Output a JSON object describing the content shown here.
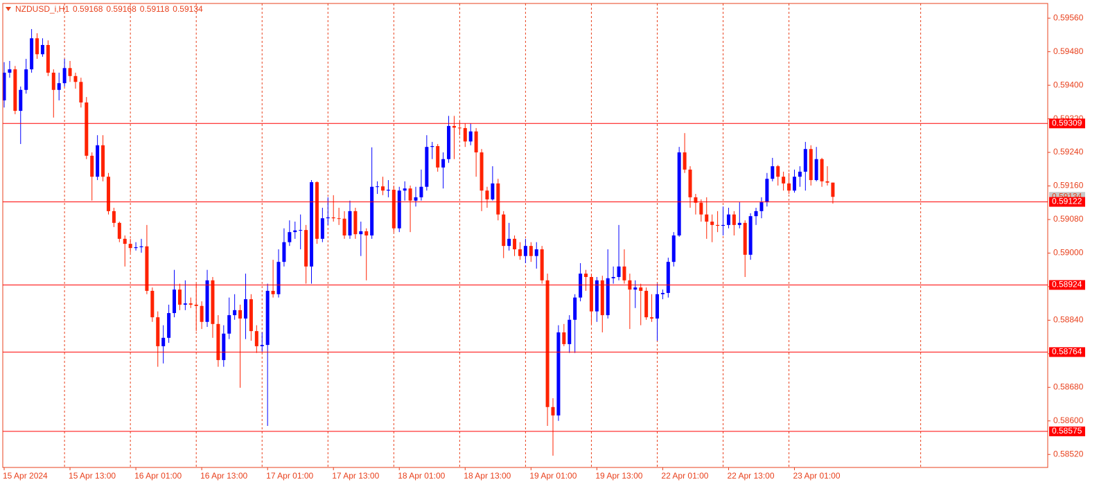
{
  "chart_data": {
    "type": "candlestick",
    "title": "NZDUSD_i,H1",
    "categories": [
      "15 Apr 2024",
      null,
      null,
      null,
      null,
      null,
      null,
      null,
      null,
      null,
      null,
      null,
      "15 Apr 13:00",
      null,
      null,
      null,
      null,
      null,
      null,
      null,
      null,
      null,
      null,
      null,
      "16 Apr 01:00",
      null,
      null,
      null,
      null,
      null,
      null,
      null,
      null,
      null,
      null,
      null,
      "16 Apr 13:00",
      null,
      null,
      null,
      null,
      null,
      null,
      null,
      null,
      null,
      null,
      null,
      "17 Apr 01:00",
      null,
      null,
      null,
      null,
      null,
      null,
      null,
      null,
      null,
      null,
      null,
      "17 Apr 13:00",
      null,
      null,
      null,
      null,
      null,
      null,
      null,
      null,
      null,
      null,
      null,
      "18 Apr 01:00",
      null,
      null,
      null,
      null,
      null,
      null,
      null,
      null,
      null,
      null,
      null,
      "18 Apr 13:00",
      null,
      null,
      null,
      null,
      null,
      null,
      null,
      null,
      null,
      null,
      null,
      "19 Apr 01:00",
      null,
      null,
      null,
      null,
      null,
      null,
      null,
      null,
      null,
      null,
      null,
      "19 Apr 13:00",
      null,
      null,
      null,
      null,
      null,
      null,
      null,
      null,
      null,
      null,
      null,
      "22 Apr 01:00",
      null,
      null,
      null,
      null,
      null,
      null,
      null,
      null,
      null,
      null,
      null,
      "22 Apr 13:00",
      null,
      null,
      null,
      null,
      null,
      null,
      null,
      null,
      null,
      null,
      null,
      "23 Apr 01:00",
      null,
      null,
      null,
      null,
      null,
      null,
      null
    ],
    "open": [
      0.59364,
      0.5943,
      0.59438,
      0.59339,
      0.59389,
      0.59438,
      0.59512,
      0.59474,
      0.59496,
      0.5943,
      0.59389,
      0.59405,
      0.59441,
      0.59422,
      0.59408,
      0.59359,
      0.59232,
      0.59182,
      0.59257,
      0.59182,
      0.591,
      0.59072,
      0.59034,
      0.59022,
      0.59012,
      0.59014,
      0.59016,
      0.5891,
      0.58847,
      0.58778,
      0.58798,
      0.58857,
      0.58913,
      0.58877,
      0.5888,
      0.58877,
      0.58874,
      0.58836,
      0.58935,
      0.58831,
      0.58745,
      0.58808,
      0.58852,
      0.58864,
      0.58844,
      0.5889,
      0.58814,
      0.58778,
      0.58781,
      0.5891,
      0.58902,
      0.58979,
      0.59026,
      0.5905,
      0.59054,
      0.59055,
      0.58968,
      0.59169,
      0.59034,
      0.59083,
      0.59085,
      0.59083,
      0.59082,
      0.59042,
      0.591,
      0.59045,
      0.59052,
      0.59042,
      0.59158,
      0.59159,
      0.59149,
      0.59151,
      0.59059,
      0.59149,
      0.59154,
      0.59125,
      0.59133,
      0.59158,
      0.59253,
      0.59255,
      0.59204,
      0.59224,
      0.59303,
      0.59299,
      0.59298,
      0.59266,
      0.5929,
      0.5924,
      0.59149,
      0.59128,
      0.59166,
      0.59092,
      0.59017,
      0.59034,
      0.59009,
      0.58993,
      0.59017,
      0.58993,
      0.59009,
      0.58935,
      0.58633,
      0.58613,
      0.58811,
      0.58783,
      0.58841,
      0.58894,
      0.58951,
      0.58943,
      0.58861,
      0.58935,
      0.58852,
      0.5894,
      0.58943,
      0.58968,
      0.58935,
      0.58913,
      0.58918,
      0.5891,
      0.58847,
      0.58844,
      0.58902,
      0.58905,
      0.58979,
      0.59042,
      0.5924,
      0.59199,
      0.59133,
      0.5912,
      0.59092,
      0.59075,
      0.59067,
      0.59065,
      0.59067,
      0.59092,
      0.59067,
      0.59072,
      0.58996,
      0.59088,
      0.591,
      0.59121,
      0.59177,
      0.59207,
      0.59182,
      0.59166,
      0.59149,
      0.59182,
      0.59194,
      0.59248,
      0.59174,
      0.59224,
      0.59171,
      0.59168
    ],
    "high": [
      0.59455,
      0.59458,
      0.59446,
      0.59397,
      0.59463,
      0.59534,
      0.59524,
      0.59512,
      0.59507,
      0.59438,
      0.5943,
      0.59463,
      0.59458,
      0.5943,
      0.59418,
      0.59372,
      0.5924,
      0.59281,
      0.59281,
      0.59191,
      0.59108,
      0.59075,
      0.59042,
      0.59034,
      0.59026,
      0.59034,
      0.59067,
      0.58918,
      0.58861,
      0.58828,
      0.58877,
      0.5896,
      0.58927,
      0.58935,
      0.58894,
      0.58927,
      0.58885,
      0.5896,
      0.58943,
      0.58852,
      0.58828,
      0.58894,
      0.58902,
      0.58877,
      0.58951,
      0.58902,
      0.58828,
      0.58811,
      0.58927,
      0.58984,
      0.59009,
      0.59059,
      0.59078,
      0.59075,
      0.59092,
      0.59067,
      0.59174,
      0.59171,
      0.59108,
      0.59133,
      0.59138,
      0.59108,
      0.591,
      0.59125,
      0.59108,
      0.59075,
      0.59059,
      0.59252,
      0.59171,
      0.59182,
      0.59174,
      0.59161,
      0.59158,
      0.59171,
      0.59161,
      0.59158,
      0.59199,
      0.59281,
      0.59265,
      0.5926,
      0.5924,
      0.59327,
      0.59327,
      0.59314,
      0.59309,
      0.59309,
      0.59298,
      0.59248,
      0.59158,
      0.59207,
      0.59177,
      0.591,
      0.59072,
      0.59042,
      0.59026,
      0.59034,
      0.59026,
      0.59026,
      0.59017,
      0.58951,
      0.58654,
      0.58828,
      0.58831,
      0.58852,
      0.58902,
      0.58976,
      0.5896,
      0.58951,
      0.58943,
      0.58946,
      0.59009,
      0.58968,
      0.59067,
      0.59009,
      0.58951,
      0.58935,
      0.58927,
      0.58918,
      0.58902,
      0.58927,
      0.58913,
      0.58989,
      0.5905,
      0.59253,
      0.59286,
      0.59207,
      0.59141,
      0.59128,
      0.59133,
      0.59092,
      0.591,
      0.59111,
      0.59108,
      0.591,
      0.59121,
      0.59078,
      0.59095,
      0.59108,
      0.59133,
      0.59191,
      0.59227,
      0.5921,
      0.59194,
      0.59191,
      0.59199,
      0.59207,
      0.59265,
      0.59257,
      0.59253,
      0.59227,
      0.59207,
      0.59168
    ],
    "low": [
      0.59347,
      0.59418,
      0.59331,
      0.5926,
      0.5938,
      0.5943,
      0.59463,
      0.59468,
      0.59422,
      0.59323,
      0.59364,
      0.59397,
      0.59408,
      0.59392,
      0.59347,
      0.59224,
      0.59125,
      0.59174,
      0.59171,
      0.59092,
      0.59062,
      0.59026,
      0.58968,
      0.59001,
      0.59006,
      0.59001,
      0.58902,
      0.58836,
      0.58729,
      0.58737,
      0.58786,
      0.58847,
      0.58864,
      0.58864,
      0.58869,
      0.58814,
      0.58819,
      0.58824,
      0.58798,
      0.58729,
      0.58729,
      0.58795,
      0.58841,
      0.58679,
      0.58795,
      0.58791,
      0.58762,
      0.58765,
      0.58588,
      0.58894,
      0.58894,
      0.58968,
      0.59017,
      0.59034,
      0.59009,
      0.58927,
      0.58927,
      0.59022,
      0.59026,
      0.59067,
      0.59075,
      0.59067,
      0.59034,
      0.59034,
      0.59034,
      0.58993,
      0.58935,
      0.59034,
      0.59141,
      0.59138,
      0.59133,
      0.5905,
      0.5905,
      0.59125,
      0.5905,
      0.59111,
      0.59125,
      0.59149,
      0.59224,
      0.59194,
      0.59154,
      0.59215,
      0.59224,
      0.59281,
      0.59253,
      0.59257,
      0.59182,
      0.591,
      0.59108,
      0.59125,
      0.59078,
      0.58988,
      0.59006,
      0.58993,
      0.58984,
      0.58976,
      0.58979,
      0.58963,
      0.58927,
      0.58588,
      0.58517,
      0.586,
      0.58778,
      0.58762,
      0.58762,
      0.58885,
      0.5891,
      0.58831,
      0.58836,
      0.58811,
      0.58844,
      0.58927,
      0.58935,
      0.58927,
      0.58819,
      0.58869,
      0.58828,
      0.58841,
      0.58836,
      0.58791,
      0.5889,
      0.58894,
      0.58968,
      0.59039,
      0.59191,
      0.59108,
      0.59092,
      0.59075,
      0.59034,
      0.59026,
      0.5905,
      0.59042,
      0.59059,
      0.59042,
      0.59059,
      0.58943,
      0.58984,
      0.59067,
      0.59083,
      0.59111,
      0.59171,
      0.59161,
      0.59149,
      0.59141,
      0.59144,
      0.59158,
      0.59149,
      0.59161,
      0.59171,
      0.59158,
      0.59161,
      0.59118
    ],
    "close": [
      0.5943,
      0.59438,
      0.59339,
      0.59389,
      0.59438,
      0.59512,
      0.59474,
      0.59496,
      0.5943,
      0.59389,
      0.59405,
      0.59441,
      0.59422,
      0.59408,
      0.59359,
      0.59232,
      0.59182,
      0.59257,
      0.59182,
      0.591,
      0.59072,
      0.59034,
      0.59022,
      0.59012,
      0.59014,
      0.59016,
      0.5891,
      0.58847,
      0.58778,
      0.58798,
      0.58857,
      0.58913,
      0.58877,
      0.5888,
      0.58877,
      0.58874,
      0.58836,
      0.58935,
      0.58831,
      0.58745,
      0.58808,
      0.58852,
      0.58864,
      0.58844,
      0.5889,
      0.58814,
      0.58778,
      0.58781,
      0.5891,
      0.58902,
      0.58979,
      0.59026,
      0.5905,
      0.59054,
      0.59055,
      0.58968,
      0.59169,
      0.59034,
      0.59083,
      0.59085,
      0.59083,
      0.59082,
      0.59042,
      0.591,
      0.59045,
      0.59052,
      0.59042,
      0.59158,
      0.59159,
      0.59149,
      0.59151,
      0.59059,
      0.59149,
      0.59154,
      0.59125,
      0.59133,
      0.59158,
      0.59253,
      0.59255,
      0.59204,
      0.59224,
      0.59303,
      0.59299,
      0.59298,
      0.59266,
      0.5929,
      0.5924,
      0.59149,
      0.59128,
      0.59166,
      0.59092,
      0.59017,
      0.59034,
      0.59009,
      0.58993,
      0.59017,
      0.58993,
      0.59009,
      0.58935,
      0.58633,
      0.58613,
      0.58811,
      0.58783,
      0.58841,
      0.58894,
      0.58951,
      0.58943,
      0.58861,
      0.58935,
      0.58852,
      0.5894,
      0.58943,
      0.58968,
      0.58935,
      0.58913,
      0.58918,
      0.5891,
      0.58847,
      0.58844,
      0.58902,
      0.58905,
      0.58979,
      0.59042,
      0.5924,
      0.59199,
      0.59133,
      0.5912,
      0.59092,
      0.59075,
      0.59067,
      0.59065,
      0.59067,
      0.59092,
      0.59067,
      0.59072,
      0.58996,
      0.59088,
      0.591,
      0.59121,
      0.59177,
      0.59207,
      0.59182,
      0.59166,
      0.59149,
      0.59182,
      0.59194,
      0.59248,
      0.59174,
      0.59224,
      0.59171,
      0.59168,
      0.59134
    ],
    "ylim": [
      0.58489,
      0.59595
    ],
    "yticks": [
      {
        "value": 0.5956,
        "label": "0.59560"
      },
      {
        "value": 0.5948,
        "label": "0.59480"
      },
      {
        "value": 0.594,
        "label": "0.59400"
      },
      {
        "value": 0.5932,
        "label": "0.59320"
      },
      {
        "value": 0.5924,
        "label": "0.59240"
      },
      {
        "value": 0.5916,
        "label": "0.59160"
      },
      {
        "value": 0.5908,
        "label": "0.59080"
      },
      {
        "value": 0.59,
        "label": "0.59000"
      },
      {
        "value": 0.5892,
        "label": "0.58920"
      },
      {
        "value": 0.5884,
        "label": "0.58840"
      },
      {
        "value": 0.5876,
        "label": "0.58760"
      },
      {
        "value": 0.5868,
        "label": "0.58680"
      },
      {
        "value": 0.586,
        "label": "0.58600"
      },
      {
        "value": 0.5852,
        "label": "0.58520"
      }
    ],
    "levels": [
      0.59309,
      0.59122,
      0.58924,
      0.58764,
      0.58575
    ],
    "up_color": "#0000ff",
    "down_color": "#ff2200",
    "doji_color": "#33dd33",
    "level_color": "#ff0000",
    "axis_color": "#e8401c",
    "day_separators": true
  }
}
